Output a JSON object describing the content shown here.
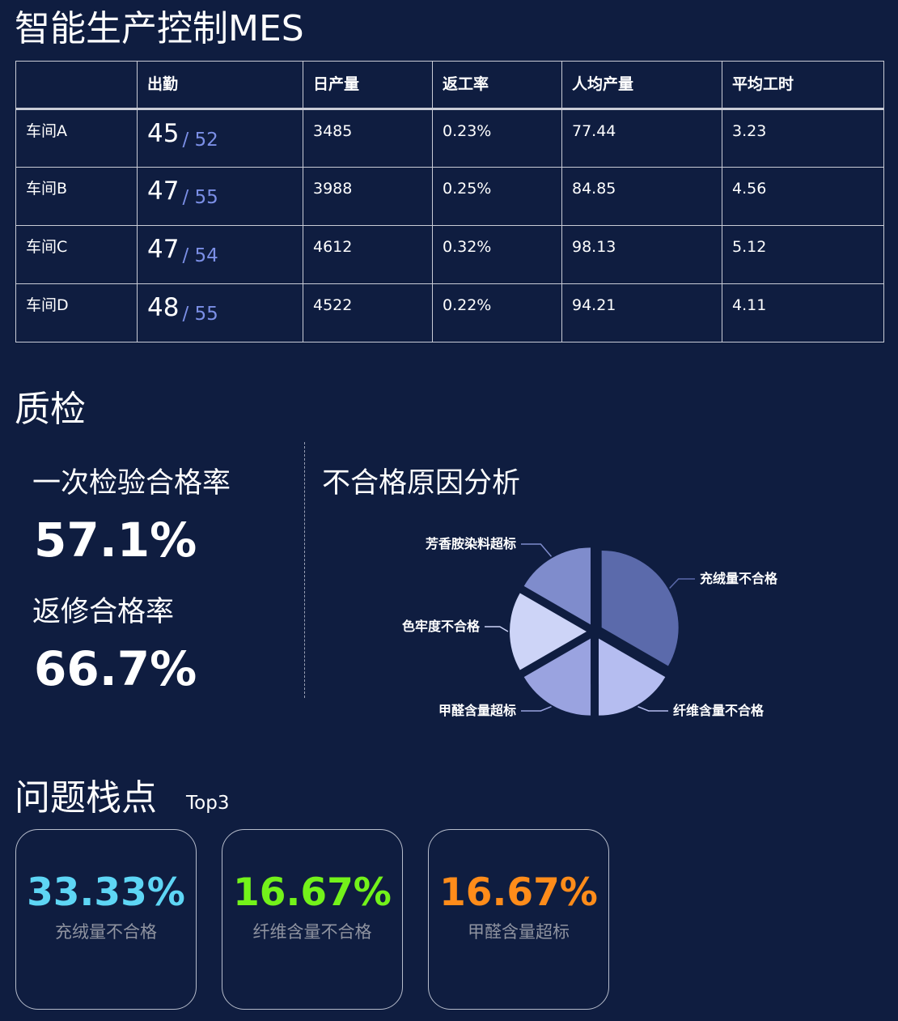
{
  "app": {
    "title": "智能生产控制MES"
  },
  "table": {
    "headers": [
      "",
      "出勤",
      "日产量",
      "返工率",
      "人均产量",
      "平均工时"
    ],
    "rows": [
      {
        "workshop": "车间A",
        "attendance": "45",
        "attendance_total": "/ 52",
        "daily_output": "3485",
        "rework_rate": "0.23%",
        "per_capita": "77.44",
        "avg_hours": "3.23"
      },
      {
        "workshop": "车间B",
        "attendance": "47",
        "attendance_total": "/ 55",
        "daily_output": "3988",
        "rework_rate": "0.25%",
        "per_capita": "84.85",
        "avg_hours": "4.56"
      },
      {
        "workshop": "车间C",
        "attendance": "47",
        "attendance_total": "/ 54",
        "daily_output": "4612",
        "rework_rate": "0.32%",
        "per_capita": "98.13",
        "avg_hours": "5.12"
      },
      {
        "workshop": "车间D",
        "attendance": "48",
        "attendance_total": "/ 55",
        "daily_output": "4522",
        "rework_rate": "0.22%",
        "per_capita": "94.21",
        "avg_hours": "4.11"
      }
    ]
  },
  "quality": {
    "title": "质检",
    "first_pass_label": "一次检验合格率",
    "first_pass_value": "57.1%",
    "rework_pass_label": "返修合格率",
    "rework_pass_value": "66.7%",
    "analysis_title": "不合格原因分析"
  },
  "chart_data": {
    "type": "pie",
    "title": "不合格原因分析",
    "slices": [
      {
        "label": "充绒量不合格",
        "value": 33.33,
        "color": "#5b6aab"
      },
      {
        "label": "纤维含量不合格",
        "value": 16.67,
        "color": "#b5bdf0"
      },
      {
        "label": "甲醛含量超标",
        "value": 16.67,
        "color": "#9aa3e0"
      },
      {
        "label": "色牢度不合格",
        "value": 16.67,
        "color": "#cdd4f7"
      },
      {
        "label": "芳香胺染料超标",
        "value": 16.67,
        "color": "#7f8ccc"
      }
    ]
  },
  "issues": {
    "title": "问题栈点",
    "tag": "Top3",
    "cards": [
      {
        "value": "33.33%",
        "label": "充绒量不合格",
        "color": "#5ed6f5"
      },
      {
        "value": "16.67%",
        "label": "纤维含量不合格",
        "color": "#73f21a"
      },
      {
        "value": "16.67%",
        "label": "甲醛含量超标",
        "color": "#ff8c1a"
      }
    ]
  }
}
